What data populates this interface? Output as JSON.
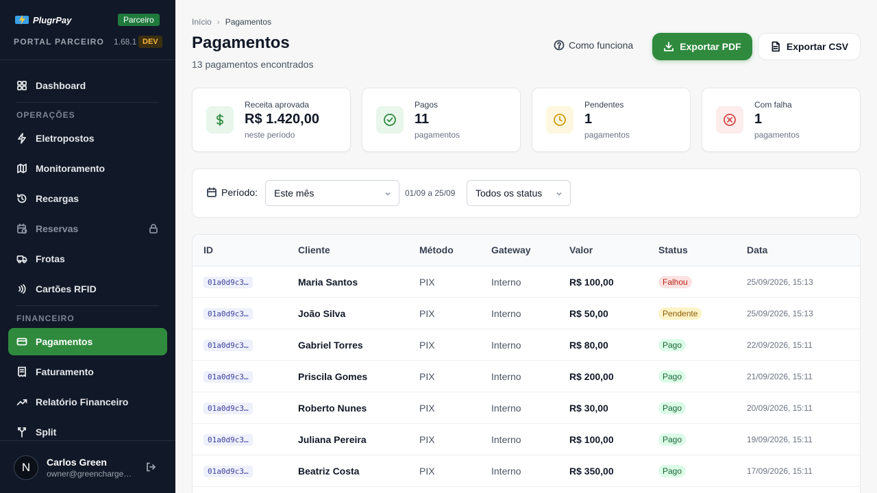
{
  "brand": {
    "logo_text": "PlugrPay",
    "badge": "Parceiro",
    "portal": "PORTAL PARCEIRO",
    "version": "1.68.1",
    "env": "DEV"
  },
  "nav": {
    "dashboard": "Dashboard",
    "section_operacoes": "OPERAÇÕES",
    "eletropostos": "Eletropostos",
    "monitoramento": "Monitoramento",
    "recargas": "Recargas",
    "reservas": "Reservas",
    "frotas": "Frotas",
    "cartoes": "Cartões RFID",
    "section_financeiro": "FINANCEIRO",
    "pagamentos": "Pagamentos",
    "faturamento": "Faturamento",
    "relatorio": "Relatório Financeiro",
    "split": "Split"
  },
  "user": {
    "initial": "N",
    "name": "Carlos Green",
    "email": "owner@greencharge.com"
  },
  "breadcrumb": {
    "home": "Início",
    "current": "Pagamentos"
  },
  "header": {
    "title": "Pagamentos",
    "subtitle": "13 pagamentos encontrados",
    "how_label": "Como funciona",
    "pdf_label": "Exportar PDF",
    "csv_label": "Exportar CSV"
  },
  "stats": [
    {
      "label": "Receita aprovada",
      "value": "R$ 1.420,00",
      "note": "neste período"
    },
    {
      "label": "Pagos",
      "value": "11",
      "note": "pagamentos"
    },
    {
      "label": "Pendentes",
      "value": "1",
      "note": "pagamentos"
    },
    {
      "label": "Com falha",
      "value": "1",
      "note": "pagamentos"
    }
  ],
  "filters": {
    "periodo_label": "Período:",
    "periodo_value": "Este mês",
    "range": "01/09 a 25/09",
    "status_value": "Todos os status"
  },
  "table": {
    "headers": {
      "id": "ID",
      "cliente": "Cliente",
      "metodo": "Método",
      "gateway": "Gateway",
      "valor": "Valor",
      "status": "Status",
      "data": "Data"
    },
    "rows": [
      {
        "id": "01a0d9c3…",
        "cliente": "Maria Santos",
        "metodo": "PIX",
        "gateway": "Interno",
        "valor": "R$ 100,00",
        "status": "Falhou",
        "data": "25/09/2026, 15:13"
      },
      {
        "id": "01a0d9c3…",
        "cliente": "João Silva",
        "metodo": "PIX",
        "gateway": "Interno",
        "valor": "R$ 50,00",
        "status": "Pendente",
        "data": "25/09/2026, 15:13"
      },
      {
        "id": "01a0d9c3…",
        "cliente": "Gabriel Torres",
        "metodo": "PIX",
        "gateway": "Interno",
        "valor": "R$ 80,00",
        "status": "Pago",
        "data": "22/09/2026, 15:11"
      },
      {
        "id": "01a0d9c3…",
        "cliente": "Priscila Gomes",
        "metodo": "PIX",
        "gateway": "Interno",
        "valor": "R$ 200,00",
        "status": "Pago",
        "data": "21/09/2026, 15:11"
      },
      {
        "id": "01a0d9c3…",
        "cliente": "Roberto Nunes",
        "metodo": "PIX",
        "gateway": "Interno",
        "valor": "R$ 30,00",
        "status": "Pago",
        "data": "20/09/2026, 15:11"
      },
      {
        "id": "01a0d9c3…",
        "cliente": "Juliana Pereira",
        "metodo": "PIX",
        "gateway": "Interno",
        "valor": "R$ 100,00",
        "status": "Pago",
        "data": "19/09/2026, 15:11"
      },
      {
        "id": "01a0d9c3…",
        "cliente": "Beatriz Costa",
        "metodo": "PIX",
        "gateway": "Interno",
        "valor": "R$ 350,00",
        "status": "Pago",
        "data": "17/09/2026, 15:11"
      }
    ]
  },
  "colors": {
    "accent": "#2f8a3e",
    "sidebar": "#111827"
  }
}
